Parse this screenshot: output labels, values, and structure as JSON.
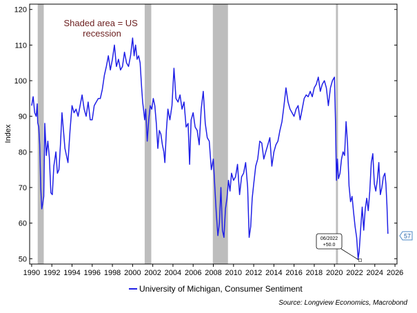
{
  "chart_data": {
    "type": "line",
    "ylabel": "Index",
    "ylim": [
      48.5,
      121.5
    ],
    "yticks": [
      50,
      60,
      70,
      80,
      90,
      100,
      110,
      120
    ],
    "xlim": [
      1989.8,
      2026.2
    ],
    "xticks": [
      1990,
      1992,
      1994,
      1996,
      1998,
      2000,
      2002,
      2004,
      2006,
      2008,
      2010,
      2012,
      2014,
      2016,
      2018,
      2020,
      2022,
      2024,
      2026
    ],
    "grid": false,
    "legend_position": "bottom-center",
    "recessions": [
      [
        1990.6,
        1991.2
      ],
      [
        2001.2,
        2001.85
      ],
      [
        2007.95,
        2009.45
      ],
      [
        2020.15,
        2020.35
      ]
    ],
    "recession_note": "Shaded area = US recession",
    "annotation": {
      "date": "06/2022",
      "value": "+50.0",
      "x": 2022.45,
      "y": 50.0
    },
    "last_value_label": "57",
    "source": "Source: Longview Economics, Macrobond",
    "series": [
      {
        "name": "University of Michigan, Consumer Sentiment",
        "color": "#1f1fe6",
        "x": [
          1990.0,
          1990.15,
          1990.3,
          1990.45,
          1990.55,
          1990.6,
          1990.7,
          1990.8,
          1990.9,
          1991.0,
          1991.1,
          1991.2,
          1991.3,
          1991.45,
          1991.6,
          1991.75,
          1991.9,
          1992.05,
          1992.2,
          1992.4,
          1992.55,
          1992.7,
          1992.85,
          1993.0,
          1993.15,
          1993.3,
          1993.45,
          1993.6,
          1993.8,
          1994.0,
          1994.2,
          1994.4,
          1994.6,
          1994.8,
          1995.0,
          1995.2,
          1995.4,
          1995.6,
          1995.8,
          1996.0,
          1996.2,
          1996.4,
          1996.6,
          1996.8,
          1997.0,
          1997.2,
          1997.4,
          1997.6,
          1997.8,
          1998.0,
          1998.2,
          1998.4,
          1998.6,
          1998.8,
          1999.0,
          1999.2,
          1999.4,
          1999.6,
          1999.8,
          2000.0,
          2000.15,
          2000.3,
          2000.45,
          2000.6,
          2000.75,
          2000.9,
          2001.0,
          2001.1,
          2001.2,
          2001.3,
          2001.45,
          2001.6,
          2001.75,
          2001.9,
          2002.05,
          2002.2,
          2002.35,
          2002.5,
          2002.65,
          2002.8,
          2002.95,
          2003.1,
          2003.2,
          2003.35,
          2003.5,
          2003.7,
          2003.9,
          2004.1,
          2004.3,
          2004.5,
          2004.7,
          2004.9,
          2005.1,
          2005.3,
          2005.5,
          2005.65,
          2005.8,
          2006.0,
          2006.2,
          2006.4,
          2006.6,
          2006.8,
          2007.0,
          2007.2,
          2007.4,
          2007.6,
          2007.8,
          2008.0,
          2008.15,
          2008.3,
          2008.45,
          2008.6,
          2008.75,
          2008.9,
          2009.05,
          2009.2,
          2009.35,
          2009.5,
          2009.65,
          2009.8,
          2010.0,
          2010.2,
          2010.4,
          2010.6,
          2010.8,
          2011.0,
          2011.2,
          2011.4,
          2011.55,
          2011.7,
          2011.85,
          2012.0,
          2012.2,
          2012.4,
          2012.6,
          2012.8,
          2013.0,
          2013.2,
          2013.4,
          2013.6,
          2013.8,
          2014.0,
          2014.2,
          2014.4,
          2014.6,
          2014.8,
          2015.0,
          2015.2,
          2015.4,
          2015.6,
          2015.8,
          2016.0,
          2016.2,
          2016.4,
          2016.6,
          2016.8,
          2017.0,
          2017.2,
          2017.4,
          2017.6,
          2017.8,
          2018.0,
          2018.2,
          2018.4,
          2018.6,
          2018.8,
          2019.0,
          2019.2,
          2019.4,
          2019.6,
          2019.8,
          2020.0,
          2020.1,
          2020.2,
          2020.3,
          2020.4,
          2020.55,
          2020.7,
          2020.85,
          2021.0,
          2021.15,
          2021.3,
          2021.45,
          2021.6,
          2021.75,
          2021.9,
          2022.05,
          2022.2,
          2022.35,
          2022.45,
          2022.6,
          2022.75,
          2022.9,
          2023.05,
          2023.2,
          2023.35,
          2023.5,
          2023.65,
          2023.8,
          2023.95,
          2024.1,
          2024.25,
          2024.4,
          2024.55,
          2024.7,
          2024.85,
          2025.0,
          2025.1,
          2025.2,
          2025.3
        ],
        "values": [
          93.0,
          95.5,
          91.0,
          90.0,
          93.5,
          88.2,
          87.0,
          82.0,
          70.0,
          64.0,
          65.5,
          67.5,
          88.0,
          79.0,
          83.0,
          78.5,
          68.5,
          68.0,
          76.0,
          80.0,
          74.0,
          75.0,
          82.0,
          91.0,
          86.0,
          81.0,
          79.0,
          77.0,
          86.0,
          93.0,
          91.0,
          92.0,
          90.0,
          93.0,
          96.0,
          92.0,
          90.0,
          94.0,
          89.0,
          89.0,
          93.0,
          94.0,
          95.0,
          95.0,
          97.5,
          101.5,
          104.0,
          107.0,
          103.0,
          106.0,
          110.0,
          104.0,
          106.0,
          103.0,
          104.0,
          108.0,
          105.0,
          104.0,
          107.0,
          112.0,
          107.0,
          110.0,
          106.0,
          107.0,
          105.0,
          98.0,
          94.0,
          91.5,
          89.0,
          92.0,
          83.0,
          89.0,
          93.0,
          92.0,
          95.0,
          93.0,
          88.0,
          81.0,
          86.0,
          85.0,
          82.0,
          80.0,
          77.0,
          86.0,
          92.0,
          89.0,
          93.0,
          103.5,
          95.0,
          94.0,
          96.0,
          92.0,
          94.0,
          87.0,
          88.0,
          76.5,
          89.0,
          91.0,
          87.0,
          86.0,
          82.0,
          92.0,
          97.0,
          88.0,
          84.0,
          83.0,
          75.0,
          78.0,
          70.0,
          62.5,
          56.5,
          60.0,
          70.0,
          58.0,
          56.0,
          64.0,
          67.0,
          72.0,
          69.0,
          74.0,
          72.0,
          73.0,
          76.5,
          68.0,
          73.0,
          74.0,
          77.0,
          70.0,
          56.0,
          59.0,
          67.0,
          71.0,
          76.0,
          78.0,
          83.0,
          82.5,
          78.0,
          80.0,
          82.0,
          84.0,
          76.0,
          80.0,
          82.0,
          83.0,
          86.0,
          88.5,
          93.0,
          98.0,
          94.0,
          92.0,
          91.0,
          90.0,
          92.0,
          93.0,
          89.0,
          92.0,
          95.0,
          96.0,
          95.5,
          97.0,
          95.5,
          98.0,
          99.0,
          101.0,
          97.0,
          99.0,
          100.0,
          98.0,
          93.0,
          98.0,
          100.0,
          101.0,
          89.0,
          72.0,
          78.0,
          72.5,
          74.0,
          78.0,
          80.0,
          79.0,
          88.5,
          82.5,
          70.5,
          66.0,
          67.5,
          63.0,
          59.0,
          56.0,
          50.0,
          52.0,
          58.5,
          64.5,
          58.0,
          64.0,
          67.0,
          63.5,
          69.0,
          77.0,
          79.5,
          71.0,
          69.0,
          72.0,
          77.0,
          68.0,
          70.0,
          73.0,
          74.0,
          71.0,
          65.0,
          57.0
        ]
      }
    ]
  }
}
